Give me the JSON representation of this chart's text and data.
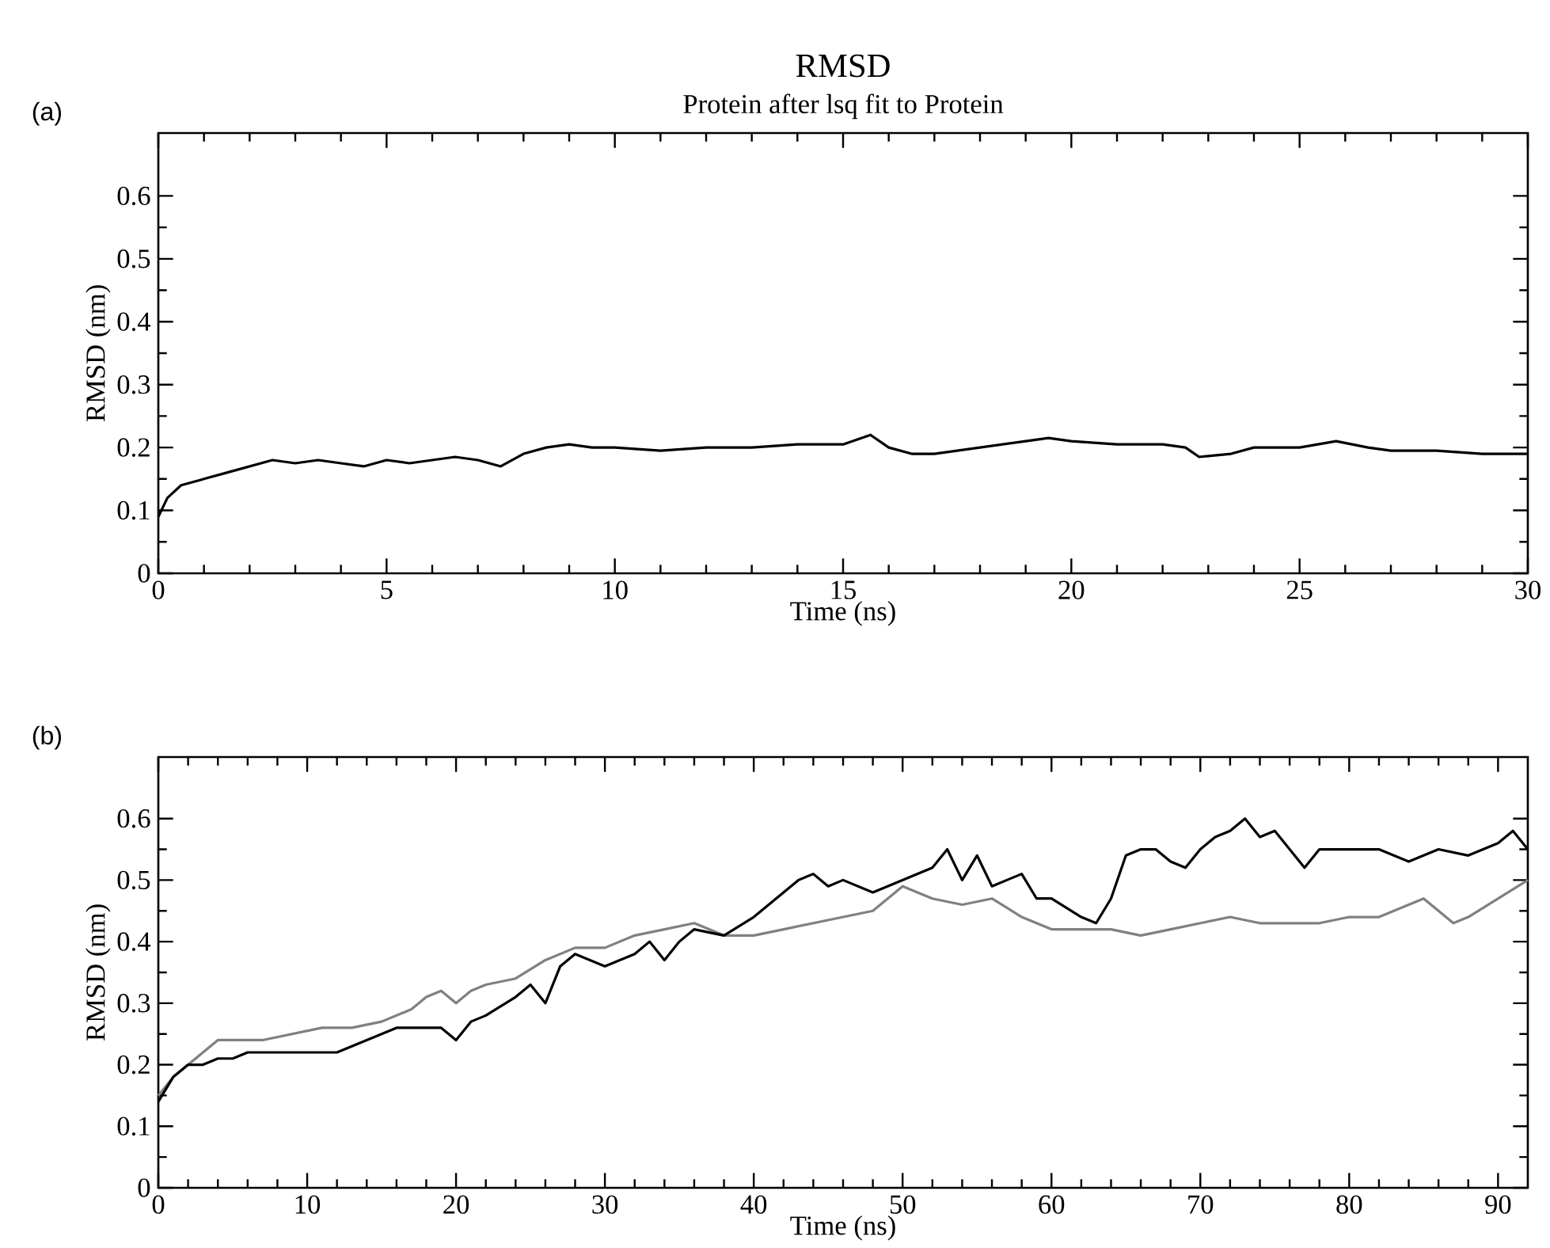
{
  "chart_data": [
    {
      "type": "line",
      "title": "RMSD",
      "subtitle": "Protein after lsq fit to Protein",
      "xlabel": "Time (ns)",
      "ylabel": "RMSD (nm)",
      "annotations": [
        "(a)"
      ],
      "xlim": [
        0,
        30
      ],
      "ylim": [
        0,
        0.7
      ],
      "xticks": [
        0,
        5,
        10,
        15,
        20,
        25,
        30
      ],
      "yticks": [
        0,
        0.1,
        0.2,
        0.3,
        0.4,
        0.5,
        0.6
      ],
      "series": [
        {
          "color": "#000000",
          "x": [
            0,
            0.2,
            0.5,
            1,
            1.5,
            2,
            2.5,
            3,
            3.5,
            4,
            4.5,
            5,
            5.5,
            6,
            6.5,
            7,
            7.5,
            8,
            8.5,
            9,
            9.5,
            10,
            11,
            12,
            13,
            14,
            15,
            15.6,
            16,
            16.5,
            17,
            18,
            19,
            19.5,
            20,
            21,
            22,
            22.5,
            22.8,
            23.5,
            24,
            25,
            25.8,
            26.5,
            27,
            28,
            29,
            30
          ],
          "values": [
            0.09,
            0.12,
            0.14,
            0.15,
            0.16,
            0.17,
            0.18,
            0.175,
            0.18,
            0.175,
            0.17,
            0.18,
            0.175,
            0.18,
            0.185,
            0.18,
            0.17,
            0.19,
            0.2,
            0.205,
            0.2,
            0.2,
            0.195,
            0.2,
            0.2,
            0.205,
            0.205,
            0.22,
            0.2,
            0.19,
            0.19,
            0.2,
            0.21,
            0.215,
            0.21,
            0.205,
            0.205,
            0.2,
            0.185,
            0.19,
            0.2,
            0.2,
            0.21,
            0.2,
            0.195,
            0.195,
            0.19,
            0.19
          ]
        }
      ]
    },
    {
      "type": "line",
      "xlabel": "Time (ns)",
      "ylabel": "RMSD (nm)",
      "annotations": [
        "(b)"
      ],
      "xlim": [
        0,
        92
      ],
      "ylim": [
        0,
        0.7
      ],
      "xticks": [
        0,
        10,
        20,
        30,
        40,
        50,
        60,
        70,
        80,
        90
      ],
      "yticks": [
        0,
        0.1,
        0.2,
        0.3,
        0.4,
        0.5,
        0.6
      ],
      "series": [
        {
          "color": "#808080",
          "x": [
            0,
            1,
            2,
            3,
            4,
            5,
            7,
            9,
            11,
            13,
            15,
            17,
            18,
            19,
            20,
            21,
            22,
            24,
            26,
            28,
            30,
            32,
            34,
            36,
            38,
            40,
            42,
            44,
            46,
            48,
            50,
            52,
            54,
            56,
            58,
            60,
            62,
            64,
            66,
            68,
            70,
            72,
            74,
            76,
            78,
            80,
            82,
            84,
            85,
            86,
            87,
            88,
            90,
            92
          ],
          "values": [
            0.15,
            0.18,
            0.2,
            0.22,
            0.24,
            0.24,
            0.24,
            0.25,
            0.26,
            0.26,
            0.27,
            0.29,
            0.31,
            0.32,
            0.3,
            0.32,
            0.33,
            0.34,
            0.37,
            0.39,
            0.39,
            0.41,
            0.42,
            0.43,
            0.41,
            0.41,
            0.42,
            0.43,
            0.44,
            0.45,
            0.49,
            0.47,
            0.46,
            0.47,
            0.44,
            0.42,
            0.42,
            0.42,
            0.41,
            0.42,
            0.43,
            0.44,
            0.43,
            0.43,
            0.43,
            0.44,
            0.44,
            0.46,
            0.47,
            0.45,
            0.43,
            0.44,
            0.47,
            0.5
          ]
        },
        {
          "color": "#000000",
          "x": [
            0,
            1,
            2,
            3,
            4,
            5,
            6,
            8,
            10,
            12,
            14,
            16,
            18,
            19,
            20,
            21,
            22,
            24,
            25,
            26,
            27,
            28,
            30,
            32,
            33,
            34,
            35,
            36,
            38,
            40,
            42,
            43,
            44,
            45,
            46,
            48,
            50,
            52,
            53,
            54,
            55,
            56,
            57,
            58,
            59,
            60,
            62,
            63,
            64,
            65,
            66,
            67,
            68,
            69,
            70,
            71,
            72,
            73,
            74,
            75,
            76,
            77,
            78,
            80,
            82,
            84,
            86,
            88,
            90,
            91,
            92
          ],
          "values": [
            0.14,
            0.18,
            0.2,
            0.2,
            0.21,
            0.21,
            0.22,
            0.22,
            0.22,
            0.22,
            0.24,
            0.26,
            0.26,
            0.26,
            0.24,
            0.27,
            0.28,
            0.31,
            0.33,
            0.3,
            0.36,
            0.38,
            0.36,
            0.38,
            0.4,
            0.37,
            0.4,
            0.42,
            0.41,
            0.44,
            0.48,
            0.5,
            0.51,
            0.49,
            0.5,
            0.48,
            0.5,
            0.52,
            0.55,
            0.5,
            0.54,
            0.49,
            0.5,
            0.51,
            0.47,
            0.47,
            0.44,
            0.43,
            0.47,
            0.54,
            0.55,
            0.55,
            0.53,
            0.52,
            0.55,
            0.57,
            0.58,
            0.6,
            0.57,
            0.58,
            0.55,
            0.52,
            0.55,
            0.55,
            0.55,
            0.53,
            0.55,
            0.54,
            0.56,
            0.58,
            0.55
          ]
        }
      ]
    }
  ]
}
